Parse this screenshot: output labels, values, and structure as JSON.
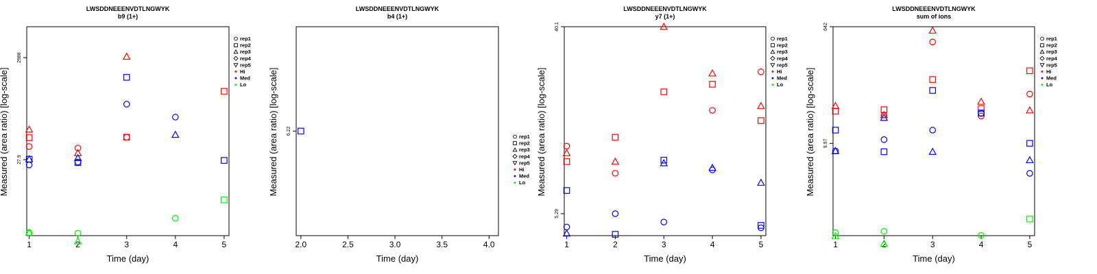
{
  "chart_data": [
    {
      "type": "scatter",
      "title": "LWSDDNEEENVDTLNGWYK",
      "subtitle": "b9 (1+)",
      "xlabel": "Time (day)",
      "ylabel": "Measured (area ratio) [log-scale]",
      "log_y": true,
      "xlim": [
        0.95,
        5.1
      ],
      "ylim": [
        0.86,
        12316
      ],
      "x_ticks": [
        "1",
        "2",
        "3",
        "4",
        "5"
      ],
      "y_ticks": [
        {
          "value": 27.9,
          "label": "27.9"
        },
        {
          "value": 2988,
          "label": "2988"
        }
      ],
      "legend_entries": [
        "rep1",
        "rep2",
        "rep3",
        "rep4",
        "rep5",
        "Hi",
        "Med",
        "Lo"
      ],
      "series": [
        {
          "group": "Hi",
          "color": "#ff0000",
          "points": [
            {
              "x": 1,
              "y": 50.9,
              "rep": "rep1"
            },
            {
              "x": 1,
              "y": 76.4,
              "rep": "rep2"
            },
            {
              "x": 1,
              "y": 111.3,
              "rep": "rep3"
            },
            {
              "x": 2,
              "y": 47.5,
              "rep": "rep1"
            },
            {
              "x": 2,
              "y": 37.8,
              "rep": "rep3"
            },
            {
              "x": 3,
              "y": 78.0,
              "rep": "rep1"
            },
            {
              "x": 3,
              "y": 78.0,
              "rep": "rep2"
            },
            {
              "x": 3,
              "y": 3134,
              "rep": "rep3"
            },
            {
              "x": 5,
              "y": 639.7,
              "rep": "rep2"
            }
          ]
        },
        {
          "group": "Med",
          "color": "#0000ff",
          "points": [
            {
              "x": 1,
              "y": 21.9,
              "rep": "rep1"
            },
            {
              "x": 1,
              "y": 28.5,
              "rep": "rep2"
            },
            {
              "x": 1,
              "y": 28.5,
              "rep": "rep3"
            },
            {
              "x": 2,
              "y": 25.0,
              "rep": "rep1"
            },
            {
              "x": 2,
              "y": 24.4,
              "rep": "rep2"
            },
            {
              "x": 2,
              "y": 30.1,
              "rep": "rep3"
            },
            {
              "x": 3,
              "y": 354.2,
              "rep": "rep1"
            },
            {
              "x": 3,
              "y": 1213,
              "rep": "rep2"
            },
            {
              "x": 4,
              "y": 196.0,
              "rep": "rep1"
            },
            {
              "x": 4,
              "y": 87.6,
              "rep": "rep3"
            },
            {
              "x": 5,
              "y": 27.0,
              "rep": "rep2"
            }
          ]
        },
        {
          "group": "Lo",
          "color": "#00ee00",
          "points": [
            {
              "x": 1,
              "y": 0.987,
              "rep": "rep1"
            },
            {
              "x": 1,
              "y": 0.987,
              "rep": "rep3"
            },
            {
              "x": 2,
              "y": 0.962,
              "rep": "rep1"
            },
            {
              "x": 2,
              "y": 0.667,
              "rep": "rep3"
            },
            {
              "x": 4,
              "y": 1.9,
              "rep": "rep1"
            },
            {
              "x": 5,
              "y": 4.42,
              "rep": "rep2"
            }
          ]
        }
      ]
    },
    {
      "type": "scatter",
      "title": "LWSDDNEEENVDTLNGWYK",
      "subtitle": "b4 (1+)",
      "xlabel": "Time (day)",
      "ylabel": "Measured (area ratio) [log-scale]",
      "log_y": true,
      "xlim": [
        1.95,
        4.1
      ],
      "ylim": [
        0.5,
        77
      ],
      "x_ticks": [
        "2.0",
        "2.5",
        "3.0",
        "3.5",
        "4.0"
      ],
      "y_ticks": [
        {
          "value": 6.22,
          "label": "6.22"
        }
      ],
      "legend_entries": [
        "rep1",
        "rep2",
        "rep3",
        "rep4",
        "rep5",
        "Hi",
        "Med",
        "Lo"
      ],
      "series": [
        {
          "group": "Med",
          "color": "#0000ff",
          "points": [
            {
              "x": 2,
              "y": 6.22,
              "rep": "rep2"
            }
          ]
        }
      ]
    },
    {
      "type": "scatter",
      "title": "LWSDDNEEENVDTLNGWYK",
      "subtitle": "y7 (1+)",
      "xlabel": "Time (day)",
      "ylabel": "Measured (area ratio) [log-scale]",
      "log_y": true,
      "xlim": [
        0.95,
        5.1
      ],
      "ylim": [
        4.17,
        40.1
      ],
      "x_ticks": [
        "1",
        "2",
        "3",
        "4",
        "5"
      ],
      "y_ticks": [
        {
          "value": 5.29,
          "label": "5.29"
        },
        {
          "value": 40.1,
          "label": "40.1"
        }
      ],
      "legend_entries": [
        "rep1",
        "rep2",
        "rep3",
        "rep4",
        "rep5",
        "Hi",
        "Med",
        "Lo"
      ],
      "series": [
        {
          "group": "Hi",
          "color": "#ff0000",
          "points": [
            {
              "x": 1,
              "y": 11.0,
              "rep": "rep1"
            },
            {
              "x": 1,
              "y": 9.3,
              "rep": "rep2"
            },
            {
              "x": 1,
              "y": 10.2,
              "rep": "rep3"
            },
            {
              "x": 2,
              "y": 8.2,
              "rep": "rep1"
            },
            {
              "x": 2,
              "y": 12.1,
              "rep": "rep2"
            },
            {
              "x": 2,
              "y": 9.3,
              "rep": "rep3"
            },
            {
              "x": 3,
              "y": 19.8,
              "rep": "rep2"
            },
            {
              "x": 3,
              "y": 40.1,
              "rep": "rep3"
            },
            {
              "x": 4,
              "y": 16.2,
              "rep": "rep1"
            },
            {
              "x": 4,
              "y": 21.5,
              "rep": "rep2"
            },
            {
              "x": 4,
              "y": 24.2,
              "rep": "rep3"
            },
            {
              "x": 5,
              "y": 24.6,
              "rep": "rep1"
            },
            {
              "x": 5,
              "y": 14.5,
              "rep": "rep2"
            },
            {
              "x": 5,
              "y": 17.0,
              "rep": "rep3"
            }
          ]
        },
        {
          "group": "Med",
          "color": "#0000ff",
          "points": [
            {
              "x": 1,
              "y": 4.58,
              "rep": "rep1"
            },
            {
              "x": 1,
              "y": 6.8,
              "rep": "rep2"
            },
            {
              "x": 1,
              "y": 4.27,
              "rep": "rep3"
            },
            {
              "x": 2,
              "y": 5.29,
              "rep": "rep1"
            },
            {
              "x": 2,
              "y": 4.23,
              "rep": "rep2"
            },
            {
              "x": 3,
              "y": 4.83,
              "rep": "rep1"
            },
            {
              "x": 3,
              "y": 9.45,
              "rep": "rep2"
            },
            {
              "x": 3,
              "y": 9.15,
              "rep": "rep3"
            },
            {
              "x": 4,
              "y": 8.5,
              "rep": "rep1"
            },
            {
              "x": 4,
              "y": 8.7,
              "rep": "rep3"
            },
            {
              "x": 5,
              "y": 4.54,
              "rep": "rep1"
            },
            {
              "x": 5,
              "y": 4.66,
              "rep": "rep2"
            },
            {
              "x": 5,
              "y": 7.4,
              "rep": "rep3"
            }
          ]
        }
      ]
    },
    {
      "type": "scatter",
      "title": "LWSDDNEEENVDTLNGWYK",
      "subtitle": "sum of ions",
      "xlabel": "Time (day)",
      "ylabel": "Measured (area ratio) [log-scale]",
      "log_y": true,
      "xlim": [
        0.95,
        5.1
      ],
      "ylim": [
        0.37,
        642
      ],
      "x_ticks": [
        "1",
        "2",
        "3",
        "4",
        "5"
      ],
      "y_ticks": [
        {
          "value": 9.97,
          "label": "9.97"
        },
        {
          "value": 642,
          "label": "642"
        }
      ],
      "legend_entries": [
        "rep1",
        "rep2",
        "rep3",
        "rep4",
        "rep5",
        "Hi",
        "Med",
        "Lo"
      ],
      "series": [
        {
          "group": "Hi",
          "color": "#ff0000",
          "points": [
            {
              "x": 1,
              "y": 31.5,
              "rep": "rep2"
            },
            {
              "x": 1,
              "y": 38.0,
              "rep": "rep3"
            },
            {
              "x": 2,
              "y": 27.4,
              "rep": "rep1"
            },
            {
              "x": 2,
              "y": 33.2,
              "rep": "rep2"
            },
            {
              "x": 2,
              "y": 27.4,
              "rep": "rep3"
            },
            {
              "x": 3,
              "y": 372,
              "rep": "rep1"
            },
            {
              "x": 3,
              "y": 97.5,
              "rep": "rep2"
            },
            {
              "x": 3,
              "y": 560,
              "rep": "rep3"
            },
            {
              "x": 4,
              "y": 26.5,
              "rep": "rep1"
            },
            {
              "x": 4,
              "y": 34.5,
              "rep": "rep2"
            },
            {
              "x": 4,
              "y": 44.3,
              "rep": "rep3"
            },
            {
              "x": 5,
              "y": 58.0,
              "rep": "rep1"
            },
            {
              "x": 5,
              "y": 133,
              "rep": "rep2"
            },
            {
              "x": 5,
              "y": 32.5,
              "rep": "rep3"
            }
          ]
        },
        {
          "group": "Med",
          "color": "#0000ff",
          "points": [
            {
              "x": 1,
              "y": 7.6,
              "rep": "rep1"
            },
            {
              "x": 1,
              "y": 16.0,
              "rep": "rep2"
            },
            {
              "x": 1,
              "y": 7.6,
              "rep": "rep3"
            },
            {
              "x": 2,
              "y": 11.4,
              "rep": "rep1"
            },
            {
              "x": 2,
              "y": 7.4,
              "rep": "rep2"
            },
            {
              "x": 2,
              "y": 24.9,
              "rep": "rep3"
            },
            {
              "x": 3,
              "y": 16.0,
              "rep": "rep1"
            },
            {
              "x": 3,
              "y": 66.0,
              "rep": "rep2"
            },
            {
              "x": 3,
              "y": 7.4,
              "rep": "rep3"
            },
            {
              "x": 4,
              "y": 29.0,
              "rep": "rep1"
            },
            {
              "x": 4,
              "y": 29.5,
              "rep": "rep2"
            },
            {
              "x": 5,
              "y": 3.42,
              "rep": "rep1"
            },
            {
              "x": 5,
              "y": 10.0,
              "rep": "rep2"
            },
            {
              "x": 5,
              "y": 5.5,
              "rep": "rep3"
            }
          ]
        },
        {
          "group": "Lo",
          "color": "#00ee00",
          "points": [
            {
              "x": 1,
              "y": 0.412,
              "rep": "rep1"
            },
            {
              "x": 1,
              "y": 0.366,
              "rep": "rep3"
            },
            {
              "x": 2,
              "y": 0.432,
              "rep": "rep1"
            },
            {
              "x": 2,
              "y": 0.277,
              "rep": "rep3"
            },
            {
              "x": 4,
              "y": 0.373,
              "rep": "rep1"
            },
            {
              "x": 5,
              "y": 0.67,
              "rep": "rep2"
            }
          ]
        }
      ]
    }
  ]
}
